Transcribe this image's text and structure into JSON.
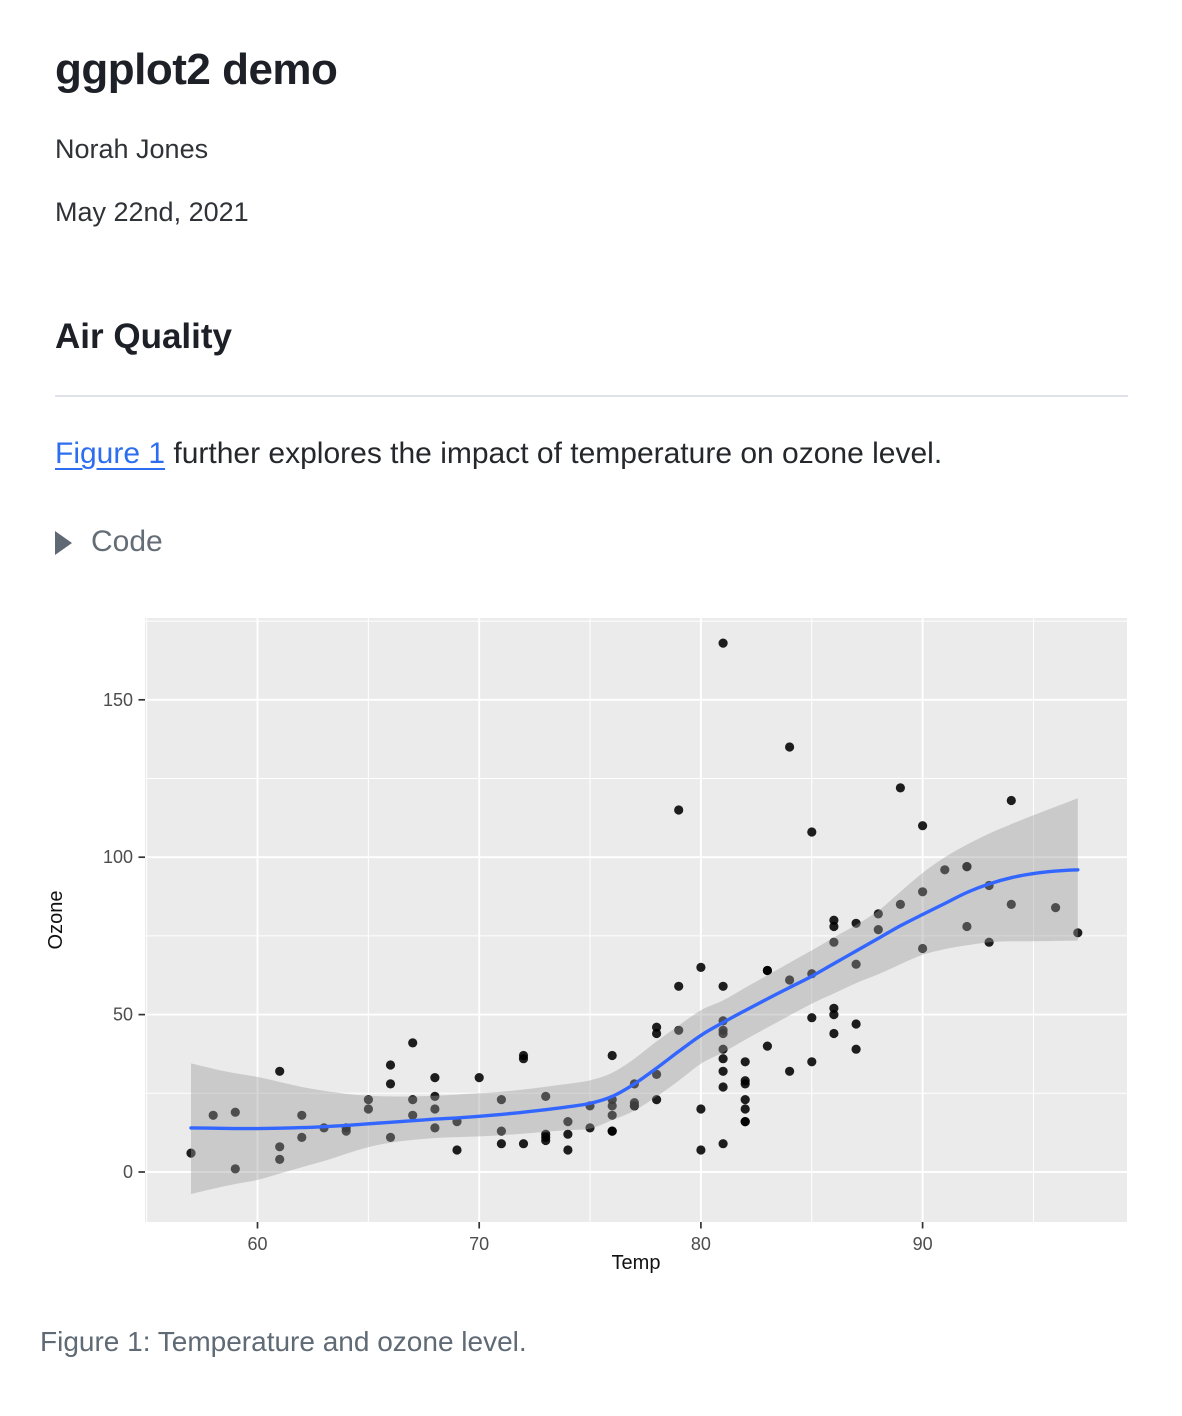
{
  "header": {
    "title": "ggplot2 demo",
    "author": "Norah Jones",
    "date": "May 22nd, 2021"
  },
  "section": {
    "heading": "Air Quality"
  },
  "intro": {
    "link_text": "Figure 1",
    "rest_text": " further explores the impact of temperature on ozone level."
  },
  "code_toggle": {
    "label": "Code"
  },
  "figure": {
    "caption": "Figure 1: Temperature and ozone level."
  },
  "chart_data": {
    "type": "scatter",
    "xlabel": "Temp",
    "ylabel": "Ozone",
    "xlim": [
      54.9,
      99.3
    ],
    "ylim": [
      -16,
      176
    ],
    "x_ticks": [
      60,
      70,
      80,
      90
    ],
    "x_minor_ticks": [
      55,
      65,
      75,
      85,
      95
    ],
    "y_ticks": [
      0,
      50,
      100,
      150
    ],
    "y_minor_ticks": [
      25,
      75,
      125,
      175
    ],
    "grid": true,
    "legend": false,
    "points": [
      [
        67,
        41
      ],
      [
        72,
        36
      ],
      [
        74,
        12
      ],
      [
        62,
        18
      ],
      [
        66,
        28
      ],
      [
        65,
        23
      ],
      [
        59,
        19
      ],
      [
        61,
        8
      ],
      [
        74,
        7
      ],
      [
        69,
        16
      ],
      [
        66,
        11
      ],
      [
        68,
        14
      ],
      [
        58,
        18
      ],
      [
        64,
        14
      ],
      [
        66,
        34
      ],
      [
        57,
        6
      ],
      [
        68,
        30
      ],
      [
        62,
        11
      ],
      [
        59,
        1
      ],
      [
        73,
        11
      ],
      [
        61,
        4
      ],
      [
        61,
        32
      ],
      [
        67,
        23
      ],
      [
        81,
        45
      ],
      [
        79,
        115
      ],
      [
        76,
        37
      ],
      [
        82,
        29
      ],
      [
        90,
        71
      ],
      [
        87,
        39
      ],
      [
        82,
        23
      ],
      [
        77,
        21
      ],
      [
        72,
        37
      ],
      [
        65,
        20
      ],
      [
        73,
        12
      ],
      [
        76,
        13
      ],
      [
        84,
        135
      ],
      [
        85,
        49
      ],
      [
        81,
        32
      ],
      [
        83,
        64
      ],
      [
        83,
        40
      ],
      [
        88,
        77
      ],
      [
        92,
        97
      ],
      [
        92,
        97
      ],
      [
        89,
        85
      ],
      [
        73,
        10
      ],
      [
        81,
        27
      ],
      [
        80,
        7
      ],
      [
        81,
        48
      ],
      [
        82,
        35
      ],
      [
        84,
        61
      ],
      [
        87,
        79
      ],
      [
        85,
        63
      ],
      [
        74,
        16
      ],
      [
        86,
        80
      ],
      [
        85,
        108
      ],
      [
        82,
        20
      ],
      [
        86,
        52
      ],
      [
        88,
        82
      ],
      [
        86,
        50
      ],
      [
        83,
        64
      ],
      [
        81,
        59
      ],
      [
        81,
        39
      ],
      [
        81,
        9
      ],
      [
        82,
        16
      ],
      [
        86,
        78
      ],
      [
        85,
        35
      ],
      [
        87,
        66
      ],
      [
        89,
        122
      ],
      [
        90,
        89
      ],
      [
        90,
        110
      ],
      [
        86,
        44
      ],
      [
        82,
        28
      ],
      [
        80,
        65
      ],
      [
        77,
        22
      ],
      [
        79,
        59
      ],
      [
        76,
        23
      ],
      [
        78,
        31
      ],
      [
        78,
        44
      ],
      [
        77,
        21
      ],
      [
        72,
        9
      ],
      [
        79,
        45
      ],
      [
        81,
        168
      ],
      [
        86,
        73
      ],
      [
        97,
        76
      ],
      [
        94,
        118
      ],
      [
        96,
        84
      ],
      [
        94,
        85
      ],
      [
        91,
        96
      ],
      [
        92,
        78
      ],
      [
        93,
        73
      ],
      [
        93,
        91
      ],
      [
        87,
        47
      ],
      [
        84,
        32
      ],
      [
        80,
        20
      ],
      [
        78,
        23
      ],
      [
        75,
        21
      ],
      [
        73,
        24
      ],
      [
        81,
        44
      ],
      [
        76,
        21
      ],
      [
        77,
        28
      ],
      [
        71,
        9
      ],
      [
        71,
        13
      ],
      [
        78,
        46
      ],
      [
        67,
        18
      ],
      [
        76,
        13
      ],
      [
        68,
        24
      ],
      [
        82,
        16
      ],
      [
        64,
        13
      ],
      [
        71,
        23
      ],
      [
        81,
        36
      ],
      [
        69,
        7
      ],
      [
        63,
        14
      ],
      [
        70,
        30
      ],
      [
        75,
        14
      ],
      [
        76,
        18
      ],
      [
        68,
        20
      ]
    ],
    "smooth": {
      "x": [
        57,
        58,
        59,
        60,
        61,
        62,
        63,
        64,
        65,
        66,
        67,
        68,
        69,
        70,
        71,
        72,
        73,
        74,
        75,
        76,
        77,
        78,
        79,
        80,
        81,
        82,
        83,
        84,
        85,
        86,
        87,
        88,
        89,
        90,
        91,
        92,
        93,
        94,
        95,
        96,
        97
      ],
      "fit": [
        14.0,
        13.9,
        13.8,
        13.8,
        13.9,
        14.1,
        14.4,
        14.8,
        15.3,
        15.8,
        16.3,
        16.8,
        17.2,
        17.7,
        18.3,
        19.0,
        19.8,
        20.7,
        21.8,
        24.0,
        28.0,
        33.0,
        38.3,
        43.4,
        47.5,
        51.3,
        55.0,
        58.6,
        62.2,
        66.2,
        70.2,
        74.2,
        78.2,
        81.8,
        85.3,
        88.8,
        91.5,
        93.5,
        94.8,
        95.6,
        96.0
      ],
      "lower": [
        -7.0,
        -5.3,
        -3.8,
        -2.5,
        -0.5,
        1.5,
        3.5,
        5.8,
        7.9,
        9.3,
        10.2,
        10.8,
        11.1,
        11.3,
        11.7,
        12.2,
        12.8,
        13.3,
        13.8,
        16.5,
        19.5,
        24.0,
        29.0,
        34.4,
        38.0,
        42.0,
        45.9,
        49.7,
        53.5,
        56.7,
        60.0,
        62.8,
        66.0,
        69.0,
        70.8,
        72.0,
        73.0,
        73.3,
        73.3,
        73.4,
        73.5
      ],
      "upper": [
        34.5,
        32.8,
        31.4,
        30.2,
        28.6,
        27.0,
        25.8,
        24.8,
        24.2,
        24.0,
        24.0,
        24.2,
        24.6,
        25.0,
        25.5,
        26.2,
        27.1,
        28.0,
        29.1,
        31.5,
        36.0,
        41.5,
        46.5,
        51.4,
        54.5,
        58.5,
        62.5,
        66.5,
        70.4,
        74.5,
        78.5,
        83.0,
        89.0,
        95.0,
        100.0,
        104.0,
        107.5,
        110.5,
        113.3,
        116.0,
        118.7
      ]
    },
    "colors": {
      "panel_bg": "#EBEBEB",
      "grid": "#FFFFFF",
      "point": "#000000",
      "smooth_line": "#3366FF",
      "band": "#999999",
      "band_opacity": 0.4,
      "tick_text": "#4D4D4D",
      "axis_title": "#111111",
      "tick_mark": "#333333"
    }
  }
}
